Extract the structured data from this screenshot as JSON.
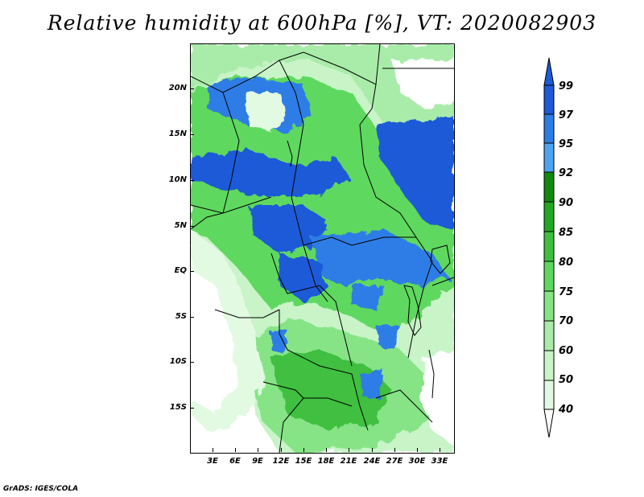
{
  "title": "Relative humidity at 600hPa [%], VT: 2020082903",
  "credit": "GrADS: IGES/COLA",
  "lat_labels": [
    "20N",
    "15N",
    "10N",
    "5N",
    "EQ",
    "5S",
    "10S",
    "15S"
  ],
  "lon_labels": [
    "3E",
    "6E",
    "9E",
    "12E",
    "15E",
    "18E",
    "21E",
    "24E",
    "27E",
    "30E",
    "33E"
  ],
  "colorbar": {
    "labels": [
      "99",
      "97",
      "95",
      "92",
      "90",
      "85",
      "80",
      "75",
      "70",
      "60",
      "50",
      "40"
    ],
    "colors": [
      "#1e5ad8",
      "#2d7de6",
      "#4ea3f0",
      "#0f8a0f",
      "#22a822",
      "#3fbf3f",
      "#5fd85f",
      "#86e486",
      "#a9eca9",
      "#c8f4c8",
      "#e2fae2",
      "#f5fef5"
    ]
  }
}
